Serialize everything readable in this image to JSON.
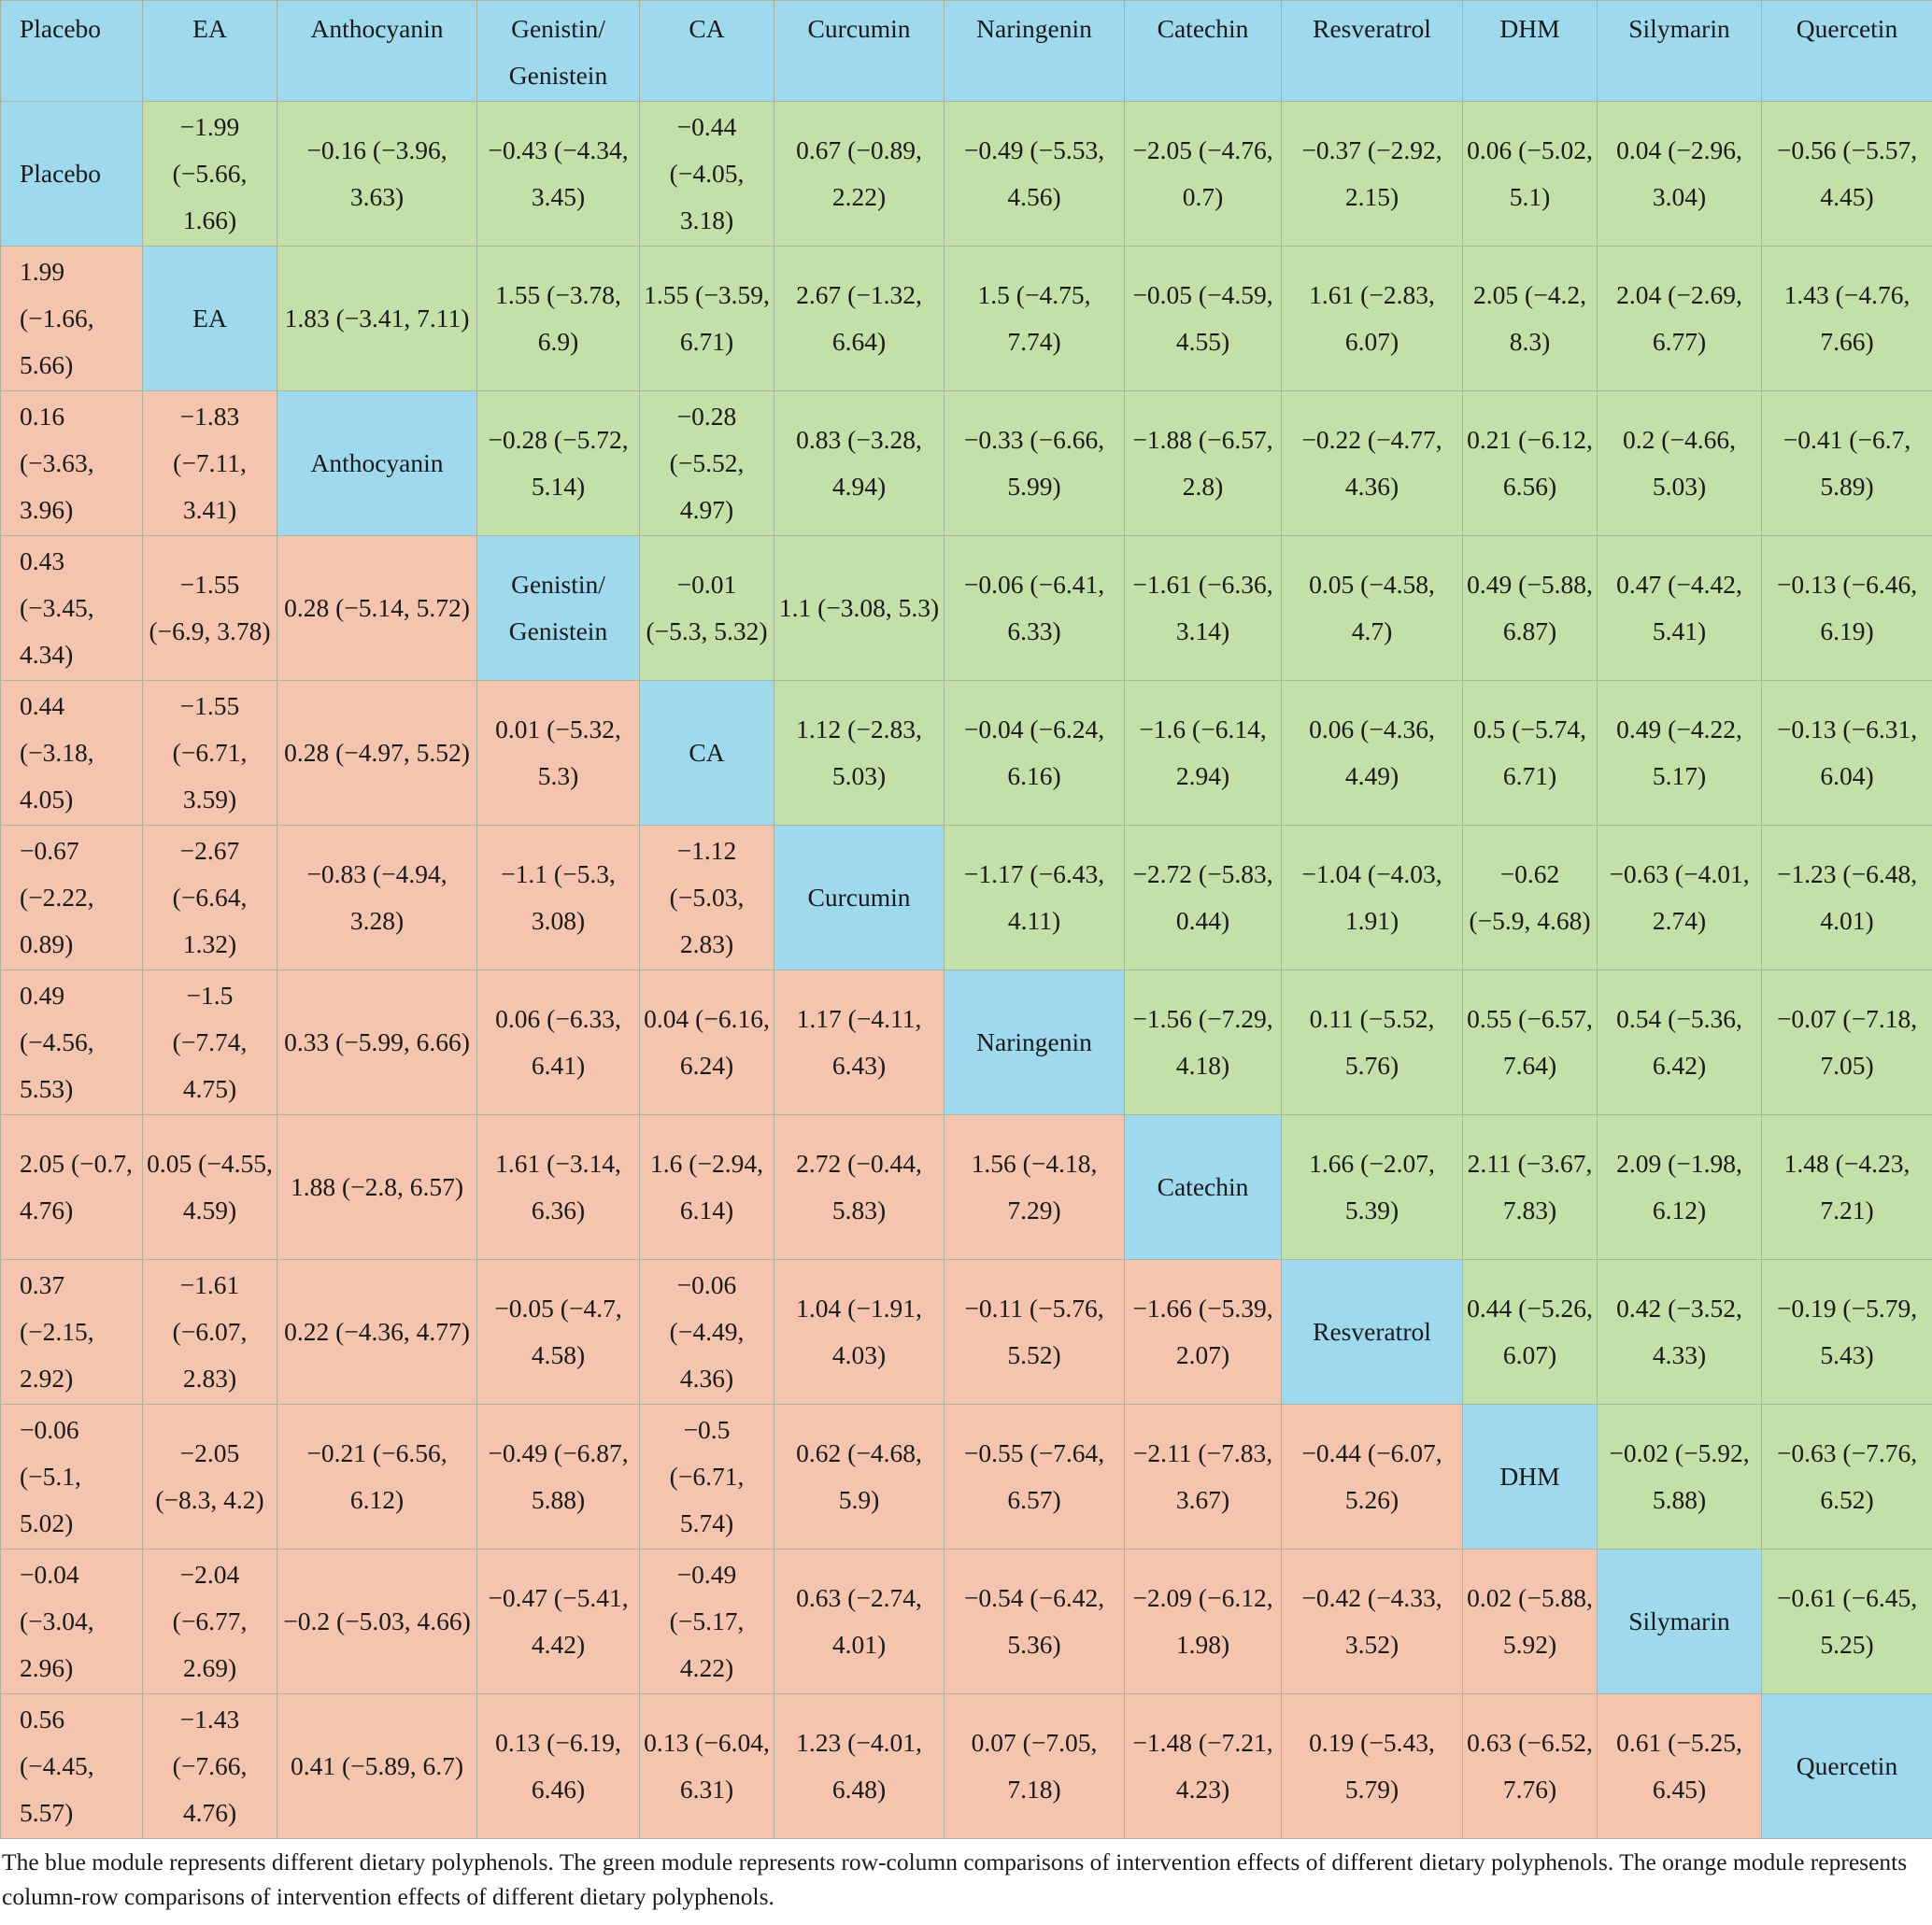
{
  "colors": {
    "blue": "#9fd9ed",
    "green": "#c2e0a8",
    "orange": "#f4c4ae"
  },
  "headers": [
    "Placebo",
    "EA",
    "Anthocyanin",
    "Genistin/ Genistein",
    "CA",
    "Curcumin",
    "Naringenin",
    "Catechin",
    "Resveratrol",
    "DHM",
    "Silymarin",
    "Quercetin"
  ],
  "rows": [
    [
      "Placebo",
      "−1.99 (−5.66, 1.66)",
      "−0.16 (−3.96, 3.63)",
      "−0.43 (−4.34, 3.45)",
      "−0.44 (−4.05, 3.18)",
      "0.67 (−0.89, 2.22)",
      "−0.49 (−5.53, 4.56)",
      "−2.05 (−4.76, 0.7)",
      "−0.37 (−2.92, 2.15)",
      "0.06 (−5.02, 5.1)",
      "0.04 (−2.96, 3.04)",
      "−0.56 (−5.57, 4.45)"
    ],
    [
      "1.99 (−1.66, 5.66)",
      "EA",
      "1.83 (−3.41, 7.11)",
      "1.55 (−3.78, 6.9)",
      "1.55 (−3.59, 6.71)",
      "2.67 (−1.32, 6.64)",
      "1.5 (−4.75, 7.74)",
      "−0.05 (−4.59, 4.55)",
      "1.61 (−2.83, 6.07)",
      "2.05 (−4.2, 8.3)",
      "2.04 (−2.69, 6.77)",
      "1.43 (−4.76, 7.66)"
    ],
    [
      "0.16 (−3.63, 3.96)",
      "−1.83 (−7.11, 3.41)",
      "Anthocyanin",
      "−0.28 (−5.72, 5.14)",
      "−0.28 (−5.52, 4.97)",
      "0.83 (−3.28, 4.94)",
      "−0.33 (−6.66, 5.99)",
      "−1.88 (−6.57, 2.8)",
      "−0.22 (−4.77, 4.36)",
      "0.21 (−6.12, 6.56)",
      "0.2 (−4.66, 5.03)",
      "−0.41 (−6.7, 5.89)"
    ],
    [
      "0.43 (−3.45, 4.34)",
      "−1.55 (−6.9, 3.78)",
      "0.28 (−5.14, 5.72)",
      "Genistin/ Genistein",
      "−0.01 (−5.3, 5.32)",
      "1.1 (−3.08, 5.3)",
      "−0.06 (−6.41, 6.33)",
      "−1.61 (−6.36, 3.14)",
      "0.05 (−4.58, 4.7)",
      "0.49 (−5.88, 6.87)",
      "0.47 (−4.42, 5.41)",
      "−0.13 (−6.46, 6.19)"
    ],
    [
      "0.44 (−3.18, 4.05)",
      "−1.55 (−6.71, 3.59)",
      "0.28 (−4.97, 5.52)",
      "0.01 (−5.32, 5.3)",
      "CA",
      "1.12 (−2.83, 5.03)",
      "−0.04 (−6.24, 6.16)",
      "−1.6 (−6.14, 2.94)",
      "0.06 (−4.36, 4.49)",
      "0.5 (−5.74, 6.71)",
      "0.49 (−4.22, 5.17)",
      "−0.13 (−6.31, 6.04)"
    ],
    [
      "−0.67 (−2.22, 0.89)",
      "−2.67 (−6.64, 1.32)",
      "−0.83 (−4.94, 3.28)",
      "−1.1 (−5.3, 3.08)",
      "−1.12 (−5.03, 2.83)",
      "Curcumin",
      "−1.17 (−6.43, 4.11)",
      "−2.72 (−5.83, 0.44)",
      "−1.04 (−4.03, 1.91)",
      "−0.62 (−5.9, 4.68)",
      "−0.63 (−4.01, 2.74)",
      "−1.23 (−6.48, 4.01)"
    ],
    [
      "0.49 (−4.56, 5.53)",
      "−1.5 (−7.74, 4.75)",
      "0.33 (−5.99, 6.66)",
      "0.06 (−6.33, 6.41)",
      "0.04 (−6.16, 6.24)",
      "1.17 (−4.11, 6.43)",
      "Naringenin",
      "−1.56 (−7.29, 4.18)",
      "0.11 (−5.52, 5.76)",
      "0.55 (−6.57, 7.64)",
      "0.54 (−5.36, 6.42)",
      "−0.07 (−7.18, 7.05)"
    ],
    [
      "2.05 (−0.7, 4.76)",
      "0.05 (−4.55, 4.59)",
      "1.88 (−2.8, 6.57)",
      "1.61 (−3.14, 6.36)",
      "1.6 (−2.94, 6.14)",
      "2.72 (−0.44, 5.83)",
      "1.56 (−4.18, 7.29)",
      "Catechin",
      "1.66 (−2.07, 5.39)",
      "2.11 (−3.67, 7.83)",
      "2.09 (−1.98, 6.12)",
      "1.48 (−4.23, 7.21)"
    ],
    [
      "0.37 (−2.15, 2.92)",
      "−1.61 (−6.07, 2.83)",
      "0.22 (−4.36, 4.77)",
      "−0.05 (−4.7, 4.58)",
      "−0.06 (−4.49, 4.36)",
      "1.04 (−1.91, 4.03)",
      "−0.11 (−5.76, 5.52)",
      "−1.66 (−5.39, 2.07)",
      "Resveratrol",
      "0.44 (−5.26, 6.07)",
      "0.42 (−3.52, 4.33)",
      "−0.19 (−5.79, 5.43)"
    ],
    [
      "−0.06 (−5.1, 5.02)",
      "−2.05 (−8.3, 4.2)",
      "−0.21 (−6.56, 6.12)",
      "−0.49 (−6.87, 5.88)",
      "−0.5 (−6.71, 5.74)",
      "0.62 (−4.68, 5.9)",
      "−0.55 (−7.64, 6.57)",
      "−2.11 (−7.83, 3.67)",
      "−0.44 (−6.07, 5.26)",
      "DHM",
      "−0.02 (−5.92, 5.88)",
      "−0.63 (−7.76, 6.52)"
    ],
    [
      "−0.04 (−3.04, 2.96)",
      "−2.04 (−6.77, 2.69)",
      "−0.2 (−5.03, 4.66)",
      "−0.47 (−5.41, 4.42)",
      "−0.49 (−5.17, 4.22)",
      "0.63 (−2.74, 4.01)",
      "−0.54 (−6.42, 5.36)",
      "−2.09 (−6.12, 1.98)",
      "−0.42 (−4.33, 3.52)",
      "0.02 (−5.88, 5.92)",
      "Silymarin",
      "−0.61 (−6.45, 5.25)"
    ],
    [
      "0.56 (−4.45, 5.57)",
      "−1.43 (−7.66, 4.76)",
      "0.41 (−5.89, 6.7)",
      "0.13 (−6.19, 6.46)",
      "0.13 (−6.04, 6.31)",
      "1.23 (−4.01, 6.48)",
      "0.07 (−7.05, 7.18)",
      "−1.48 (−7.21, 4.23)",
      "0.19 (−5.43, 5.79)",
      "0.63 (−6.52, 7.76)",
      "0.61 (−5.25, 6.45)",
      "Quercetin"
    ]
  ],
  "footnote": "The blue module represents different dietary polyphenols. The green module represents row-column comparisons of intervention effects of different dietary polyphenols. The orange module represents column-row comparisons of intervention effects of different dietary polyphenols."
}
